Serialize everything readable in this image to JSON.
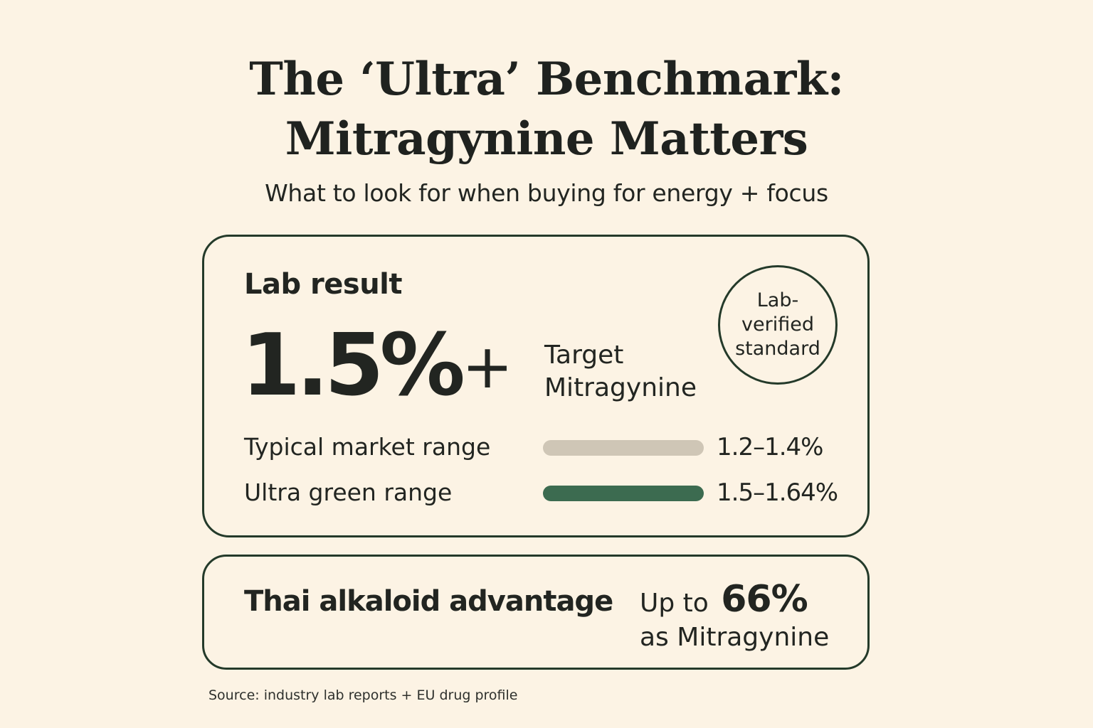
{
  "header": {
    "title_line1": "The ‘Ultra’ Benchmark:",
    "title_line2": "Mitragynine Matters",
    "subtitle": "What to look for when buying for energy + focus"
  },
  "lab_card": {
    "label": "Lab result",
    "big_value": "1.5%",
    "big_suffix": "+",
    "target_line1": "Target",
    "target_line2": "Mitragynine",
    "badge": {
      "line1": "Lab-",
      "line2": "verified",
      "line3": "standard"
    },
    "ranges": [
      {
        "label": "Typical market range",
        "value": "1.2–1.4%",
        "bar_color": "#cfc6b6"
      },
      {
        "label": "Ultra green range",
        "value": "1.5–1.64%",
        "bar_color": "#3c6b50"
      }
    ]
  },
  "thai_card": {
    "label": "Thai alkaloid advantage",
    "prefix": "Up to",
    "percent": "66%",
    "suffix": "as Mitragynine"
  },
  "source": "Source: industry lab reports + EU drug profile",
  "colors": {
    "background": "#fcf3e4",
    "border": "#243a2a",
    "text": "#222521",
    "typical_bar": "#cfc6b6",
    "ultra_bar": "#3c6b50"
  }
}
